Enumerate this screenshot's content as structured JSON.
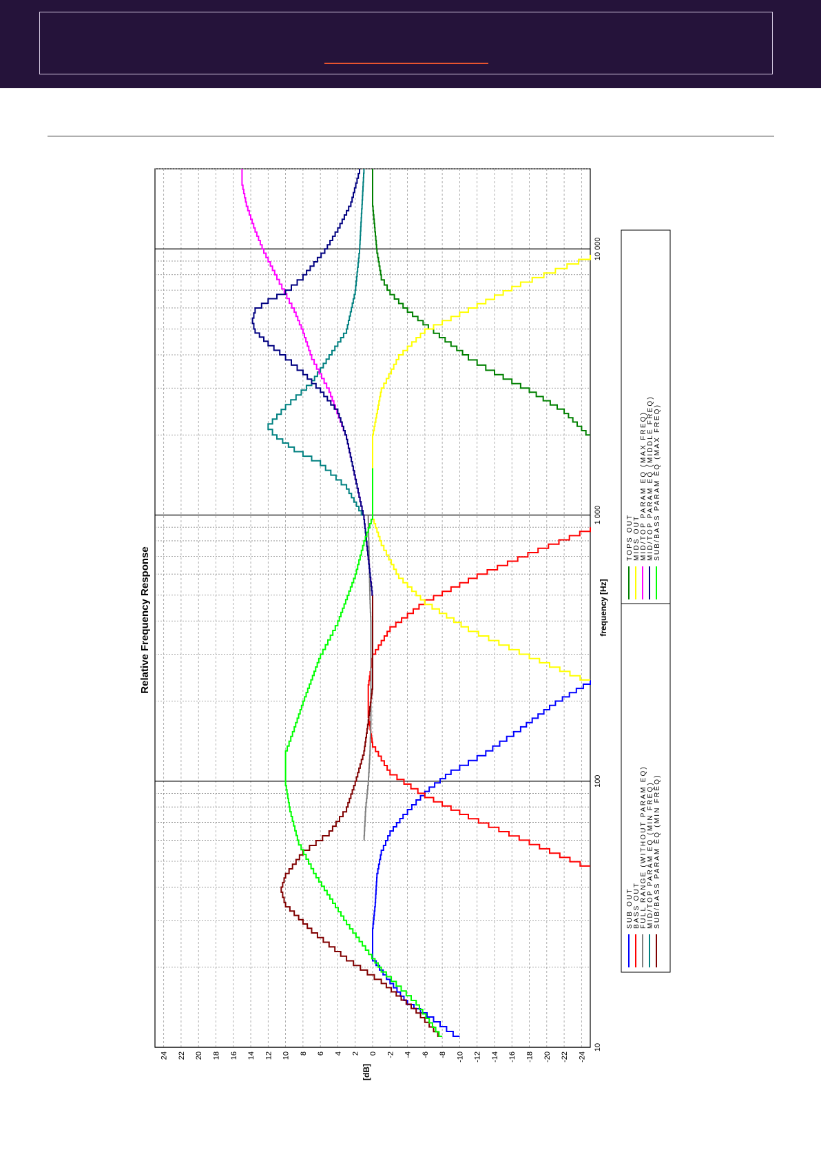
{
  "page": {
    "banner_color": "#25133a",
    "accent_color": "#e8542f"
  },
  "chart_data": {
    "type": "line",
    "title": "Relative Frequency Response",
    "xlabel": "frequency [Hz]",
    "ylabel": "[dB]",
    "xscale": "log",
    "xlim": [
      10,
      20000
    ],
    "ylim": [
      -25,
      25
    ],
    "x_tick_labels": [
      {
        "value": 10,
        "label": "10"
      },
      {
        "value": 100,
        "label": "100"
      },
      {
        "value": 1000,
        "label": "1 000"
      },
      {
        "value": 10000,
        "label": "10 000"
      }
    ],
    "y_ticks": [
      24,
      22,
      20,
      18,
      16,
      14,
      12,
      10,
      8,
      6,
      4,
      2,
      0,
      -2,
      -4,
      -6,
      -8,
      -10,
      -12,
      -14,
      -16,
      -18,
      -20,
      -22,
      -24
    ],
    "grid": true,
    "legend_position": "bottom",
    "orientation": "rotated 90° counter-clockwise",
    "series": [
      {
        "name": "SUB OUT",
        "color": "#0000ff",
        "x": [
          11,
          13,
          15,
          18,
          22,
          28,
          35,
          45,
          55,
          65,
          75,
          85,
          95,
          110,
          130,
          160,
          200,
          240
        ],
        "y": [
          -10,
          -7,
          -4,
          -2,
          0,
          0,
          -0.3,
          -0.5,
          -1,
          -2,
          -3.5,
          -5,
          -6.5,
          -9,
          -13,
          -17,
          -21,
          -25
        ]
      },
      {
        "name": "BASS OUT",
        "color": "#ff0000",
        "x": [
          48,
          60,
          75,
          90,
          110,
          140,
          180,
          230,
          300,
          380,
          480,
          600,
          750,
          900
        ],
        "y": [
          -25,
          -18,
          -11,
          -6,
          -2,
          0,
          0.5,
          0.5,
          0,
          -2,
          -6,
          -12,
          -19,
          -25
        ]
      },
      {
        "name": "FULL RANGE (WITHOUT PARAM EQ)",
        "color": "#808080",
        "x": [
          60,
          80,
          100,
          130,
          170,
          230,
          300,
          400,
          500,
          700,
          1000
        ],
        "y": [
          1,
          0.8,
          0.5,
          0.3,
          0.2,
          0.2,
          0.2,
          0.2,
          0.3,
          0.4,
          0.5
        ]
      },
      {
        "name": "MID/TOP PARAM EQ (MIN FREQ)",
        "color": "#008080",
        "x": [
          1000,
          1300,
          1600,
          1800,
          2000,
          2200,
          2600,
          3200,
          4000,
          5000,
          7000,
          10000,
          20000
        ],
        "y": [
          1,
          3,
          6,
          9,
          11,
          12,
          10,
          7,
          5,
          3,
          2,
          1.5,
          1
        ]
      },
      {
        "name": "SUB/BASS PARAM EQ (MIN FREQ)",
        "color": "#800000",
        "x": [
          11,
          14,
          18,
          22,
          28,
          35,
          40,
          45,
          55,
          65,
          80,
          100,
          130,
          170,
          230,
          300,
          400,
          500
        ],
        "y": [
          -8,
          -5,
          -1,
          3,
          7,
          10,
          10.5,
          10,
          8,
          5,
          3,
          2,
          1,
          0.5,
          0,
          0,
          0,
          0
        ]
      },
      {
        "name": "TOPS OUT",
        "color": "#008000",
        "x": [
          2000,
          2500,
          3000,
          3500,
          4000,
          5000,
          6000,
          7000,
          8000,
          10000,
          15000,
          20000
        ],
        "y": [
          -25,
          -22,
          -18,
          -14,
          -11,
          -7,
          -4,
          -2,
          -1,
          -0.5,
          0,
          0
        ]
      },
      {
        "name": "MIDS OUT",
        "color": "#ffff00",
        "x": [
          240,
          300,
          380,
          480,
          600,
          800,
          1000,
          1500,
          2000,
          3000,
          4000,
          5000,
          6000,
          7500,
          9500
        ],
        "y": [
          -25,
          -18,
          -11,
          -6,
          -3,
          -1,
          0,
          0,
          0,
          -1,
          -3,
          -6,
          -11,
          -17,
          -25
        ]
      },
      {
        "name": "MID/TOP PARAM EQ (MAX FREQ)",
        "color": "#ff00ff",
        "x": [
          500,
          1000,
          2000,
          3000,
          4000,
          5000,
          6000,
          8000,
          10000,
          12000,
          15000,
          18000,
          20000
        ],
        "y": [
          0,
          1,
          3,
          5,
          7,
          8,
          9,
          11,
          12.5,
          13.5,
          14.5,
          15,
          15
        ]
      },
      {
        "name": "MID/TOP PARAM EQ (MIDDLE FREQ)",
        "color": "#000080",
        "x": [
          500,
          1000,
          2000,
          2500,
          3000,
          3500,
          4000,
          4500,
          5000,
          5500,
          6000,
          6500,
          7000,
          8000,
          10000,
          12000,
          15000,
          20000
        ],
        "y": [
          0,
          1,
          3,
          4,
          6,
          8,
          10,
          12,
          13.5,
          13.8,
          13.5,
          12,
          10,
          8,
          5.5,
          4,
          2.5,
          1.5
        ]
      },
      {
        "name": "SUB/BASS PARAM EQ (MAX FREQ)",
        "color": "#00ff00",
        "x": [
          11,
          15,
          20,
          30,
          45,
          60,
          80,
          100,
          130,
          160,
          200,
          300,
          400,
          600,
          800,
          1000,
          1500
        ],
        "y": [
          -8,
          -5,
          -1,
          3,
          6.5,
          8.5,
          9.5,
          10,
          10,
          9,
          8,
          6,
          4,
          2,
          1,
          0,
          0
        ]
      }
    ]
  }
}
